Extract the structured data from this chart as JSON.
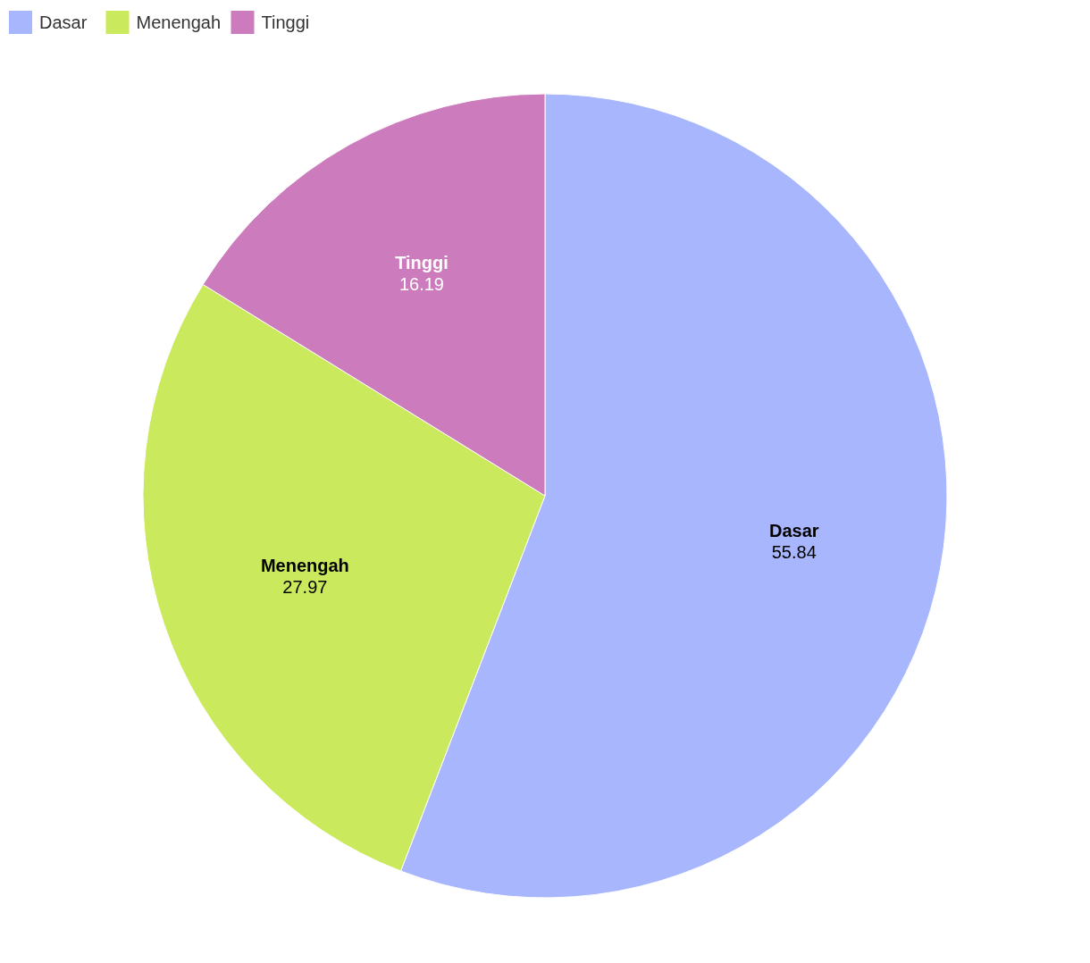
{
  "chart_data": {
    "type": "pie",
    "categories": [
      "Dasar",
      "Menengah",
      "Tinggi"
    ],
    "values": [
      55.84,
      27.97,
      16.19
    ],
    "colors": [
      "#a8b6fd",
      "#cbe95c",
      "#cc7bbd"
    ],
    "data_labels": true,
    "legend": "top left"
  }
}
